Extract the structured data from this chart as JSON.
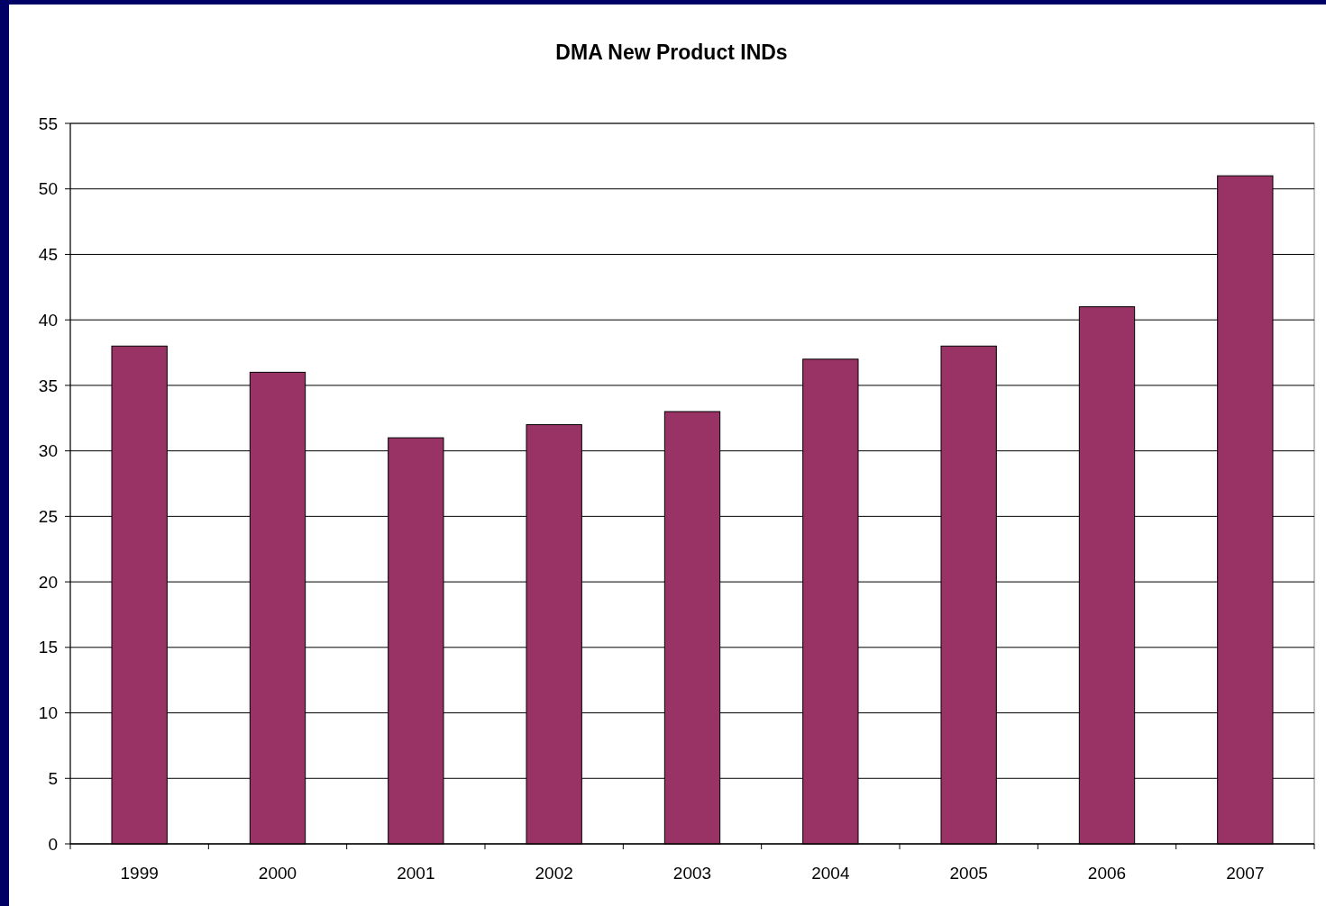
{
  "chart_data": {
    "type": "bar",
    "title": "DMA New Product INDs",
    "categories": [
      "1999",
      "2000",
      "2001",
      "2002",
      "2003",
      "2004",
      "2005",
      "2006",
      "2007"
    ],
    "values": [
      38,
      36,
      31,
      32,
      33,
      37,
      38,
      41,
      51
    ],
    "color": "#993366",
    "ylim": [
      0,
      55
    ],
    "yticks": [
      0,
      5,
      10,
      15,
      20,
      25,
      30,
      35,
      40,
      45,
      50,
      55
    ],
    "grid": "y"
  }
}
